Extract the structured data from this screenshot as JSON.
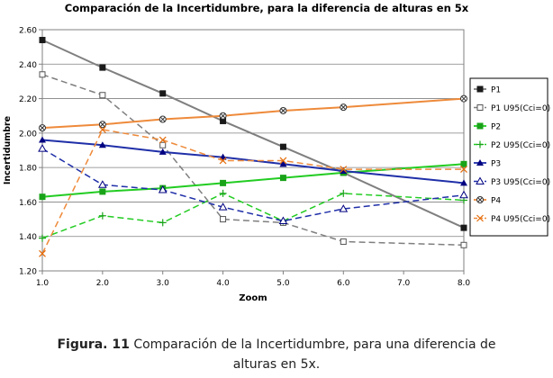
{
  "colors": {
    "p1": "#1a1a1a",
    "p1_line": "#7f7f7f",
    "p2": "#19a319",
    "p2_line": "#22cc22",
    "p3": "#000080",
    "p3_line": "#1f2fa8",
    "p4": "#e46c0a",
    "p4_line": "#ee8a3a"
  },
  "caption": {
    "label": "Figura. 11",
    "line1": "Comparación de la Incertidumbre, para una diferencia de",
    "line2": "alturas en 5x."
  },
  "chart_data": {
    "type": "line",
    "title": "Comparación de la Incertidumbre, para la diferencia de alturas en 5x",
    "xlabel": "Zoom",
    "ylabel": "Incertidumbre",
    "xlim": [
      1.0,
      8.0
    ],
    "ylim": [
      1.2,
      2.6
    ],
    "x_ticks": [
      "1.0",
      "2.0",
      "3.0",
      "4.0",
      "5.0",
      "6.0",
      "7.0",
      "8.0"
    ],
    "y_ticks": [
      "1.20",
      "1.40",
      "1.60",
      "1.80",
      "2.00",
      "2.20",
      "2.40",
      "2.60"
    ],
    "grid": "horizontal",
    "legend_position": "right",
    "x": [
      1,
      2,
      3,
      4,
      5,
      6,
      8
    ],
    "series": [
      {
        "name": "P1",
        "values": [
          2.54,
          2.38,
          2.23,
          2.07,
          1.92,
          1.77,
          1.45
        ],
        "style": "solid",
        "marker": "square-filled",
        "color_key": "p1",
        "line_key": "p1_line"
      },
      {
        "name": "P1 U95(Cci=0)",
        "values": [
          2.34,
          2.22,
          1.93,
          1.5,
          1.48,
          1.37,
          1.35
        ],
        "style": "dashed",
        "marker": "square-open",
        "color_key": "p1",
        "line_key": "p1_line"
      },
      {
        "name": "P2",
        "values": [
          1.63,
          1.66,
          1.68,
          1.71,
          1.74,
          1.77,
          1.82
        ],
        "style": "solid",
        "marker": "square-filled",
        "color_key": "p2",
        "line_key": "p2_line"
      },
      {
        "name": "P2 U95(Cci=0)",
        "values": [
          1.39,
          1.52,
          1.48,
          1.65,
          1.49,
          1.65,
          1.61
        ],
        "style": "dashed",
        "marker": "plus",
        "color_key": "p2",
        "line_key": "p2_line"
      },
      {
        "name": "P3",
        "values": [
          1.96,
          1.93,
          1.89,
          1.86,
          1.82,
          1.78,
          1.71
        ],
        "style": "solid",
        "marker": "triangle-filled",
        "color_key": "p3",
        "line_key": "p3_line"
      },
      {
        "name": "P3 U95(Cci=0)",
        "values": [
          1.91,
          1.7,
          1.67,
          1.57,
          1.49,
          1.56,
          1.64
        ],
        "style": "dashed",
        "marker": "triangle-open",
        "color_key": "p3",
        "line_key": "p3_line"
      },
      {
        "name": "P4",
        "values": [
          2.03,
          2.05,
          2.08,
          2.1,
          2.13,
          2.15,
          2.2
        ],
        "style": "solid",
        "marker": "circle-x",
        "color_key": "p4",
        "line_key": "p4_line"
      },
      {
        "name": "P4 U95(Cci=0)",
        "values": [
          1.3,
          2.02,
          1.96,
          1.84,
          1.84,
          1.79,
          1.79
        ],
        "style": "dashed",
        "marker": "x",
        "color_key": "p4",
        "line_key": "p4_line"
      }
    ]
  }
}
